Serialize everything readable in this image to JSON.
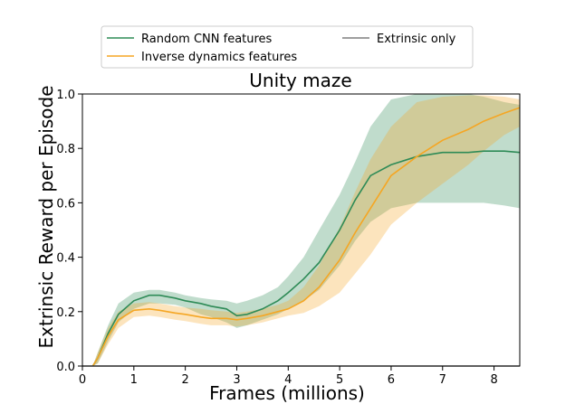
{
  "chart_data": {
    "type": "line",
    "title": "Unity maze",
    "xlabel": "Frames (millions)",
    "ylabel": "Extrinsic Reward per Episode",
    "xlim": [
      0,
      8.5
    ],
    "ylim": [
      0,
      1.0
    ],
    "xticks": [
      0,
      1,
      2,
      3,
      4,
      5,
      6,
      7,
      8
    ],
    "yticks": [
      0.0,
      0.2,
      0.4,
      0.6,
      0.8,
      1.0
    ],
    "xtick_labels": [
      "0",
      "1",
      "2",
      "3",
      "4",
      "5",
      "6",
      "7",
      "8"
    ],
    "ytick_labels": [
      "0.0",
      "0.2",
      "0.4",
      "0.6",
      "0.8",
      "1.0"
    ],
    "grid": false,
    "legend_position": "top-outside",
    "series": [
      {
        "name": "Random CNN features",
        "color": "#2e8b57",
        "x": [
          0.2,
          0.3,
          0.5,
          0.7,
          1.0,
          1.3,
          1.5,
          1.8,
          2.0,
          2.3,
          2.5,
          2.8,
          3.0,
          3.2,
          3.5,
          3.8,
          4.0,
          4.3,
          4.6,
          5.0,
          5.3,
          5.6,
          6.0,
          6.5,
          7.0,
          7.5,
          7.8,
          8.2,
          8.5
        ],
        "y": [
          0.0,
          0.03,
          0.12,
          0.19,
          0.24,
          0.26,
          0.26,
          0.25,
          0.24,
          0.23,
          0.22,
          0.21,
          0.185,
          0.19,
          0.21,
          0.24,
          0.27,
          0.32,
          0.38,
          0.5,
          0.61,
          0.7,
          0.74,
          0.77,
          0.785,
          0.785,
          0.79,
          0.79,
          0.785
        ],
        "upper": [
          0.0,
          0.05,
          0.15,
          0.23,
          0.27,
          0.28,
          0.28,
          0.27,
          0.26,
          0.25,
          0.245,
          0.24,
          0.23,
          0.24,
          0.26,
          0.29,
          0.33,
          0.4,
          0.5,
          0.63,
          0.75,
          0.88,
          0.98,
          1.0,
          1.0,
          1.0,
          0.99,
          0.97,
          0.96
        ],
        "lower": [
          0.0,
          0.01,
          0.09,
          0.16,
          0.21,
          0.23,
          0.23,
          0.225,
          0.215,
          0.19,
          0.18,
          0.16,
          0.14,
          0.15,
          0.17,
          0.19,
          0.21,
          0.24,
          0.28,
          0.37,
          0.46,
          0.53,
          0.58,
          0.6,
          0.6,
          0.6,
          0.6,
          0.59,
          0.58
        ]
      },
      {
        "name": "Inverse dynamics features",
        "color": "#f5a623",
        "x": [
          0.2,
          0.3,
          0.5,
          0.7,
          1.0,
          1.3,
          1.5,
          1.8,
          2.0,
          2.3,
          2.5,
          2.8,
          3.0,
          3.2,
          3.5,
          3.8,
          4.0,
          4.3,
          4.6,
          5.0,
          5.3,
          5.6,
          6.0,
          6.5,
          7.0,
          7.5,
          7.8,
          8.2,
          8.5
        ],
        "y": [
          0.0,
          0.03,
          0.11,
          0.17,
          0.205,
          0.21,
          0.205,
          0.195,
          0.19,
          0.18,
          0.175,
          0.175,
          0.17,
          0.175,
          0.185,
          0.2,
          0.21,
          0.24,
          0.29,
          0.39,
          0.49,
          0.58,
          0.7,
          0.77,
          0.83,
          0.87,
          0.9,
          0.93,
          0.95
        ],
        "upper": [
          0.0,
          0.05,
          0.14,
          0.2,
          0.23,
          0.235,
          0.23,
          0.22,
          0.215,
          0.21,
          0.205,
          0.2,
          0.195,
          0.2,
          0.21,
          0.225,
          0.24,
          0.29,
          0.37,
          0.51,
          0.64,
          0.76,
          0.88,
          0.97,
          0.99,
          0.995,
          0.995,
          0.99,
          0.98
        ],
        "lower": [
          0.0,
          0.01,
          0.08,
          0.14,
          0.18,
          0.185,
          0.18,
          0.17,
          0.165,
          0.155,
          0.15,
          0.15,
          0.145,
          0.15,
          0.16,
          0.175,
          0.185,
          0.195,
          0.22,
          0.27,
          0.34,
          0.41,
          0.52,
          0.6,
          0.67,
          0.74,
          0.79,
          0.85,
          0.88
        ]
      },
      {
        "name": "Extrinsic only",
        "color": "#7f7f7f",
        "x": [
          0.0,
          8.5
        ],
        "y": [
          0.0,
          0.0
        ]
      }
    ]
  }
}
